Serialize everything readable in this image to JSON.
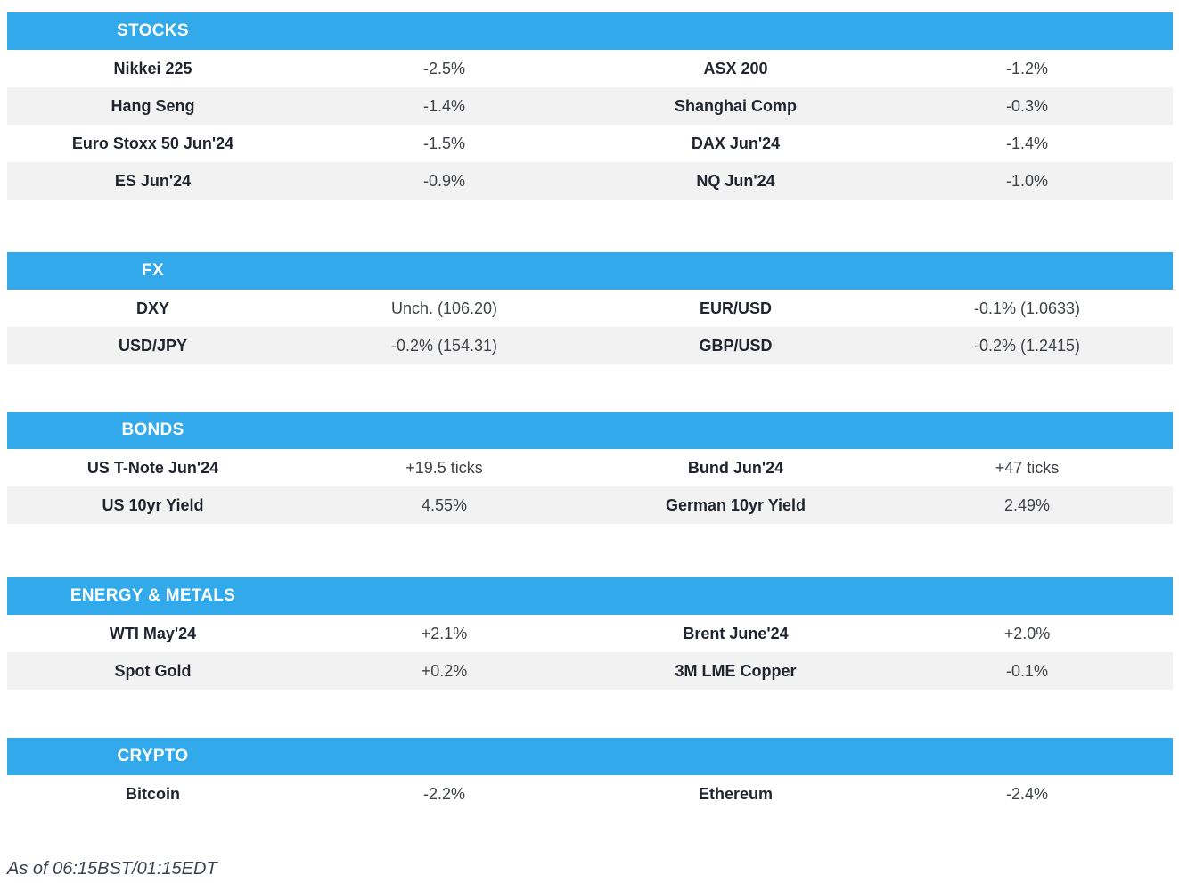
{
  "colors": {
    "header_bg": "#31A9EA",
    "row_alt_bg": "#F2F2F2",
    "header_text": "#FFFFFF",
    "label_text": "#1F242E",
    "value_text": "#3E4247"
  },
  "sections": [
    {
      "title": "STOCKS",
      "rows": [
        [
          "Nikkei 225",
          "-2.5%",
          "ASX 200",
          "-1.2%"
        ],
        [
          "Hang Seng",
          "-1.4%",
          "Shanghai Comp",
          "-0.3%"
        ],
        [
          "Euro Stoxx 50 Jun'24",
          "-1.5%",
          "DAX Jun'24",
          "-1.4%"
        ],
        [
          "ES Jun'24",
          "-0.9%",
          "NQ Jun'24",
          "-1.0%"
        ]
      ]
    },
    {
      "title": "FX",
      "rows": [
        [
          "DXY",
          "Unch. (106.20)",
          "EUR/USD",
          "-0.1% (1.0633)"
        ],
        [
          "USD/JPY",
          "-0.2% (154.31)",
          "GBP/USD",
          "-0.2% (1.2415)"
        ]
      ]
    },
    {
      "title": "BONDS",
      "rows": [
        [
          "US T-Note Jun'24",
          "+19.5 ticks",
          "Bund Jun'24",
          "+47 ticks"
        ],
        [
          "US 10yr Yield",
          "4.55%",
          "German 10yr Yield",
          "2.49%"
        ]
      ]
    },
    {
      "title": "ENERGY & METALS",
      "rows": [
        [
          "WTI May'24",
          "+2.1%",
          "Brent June'24",
          "+2.0%"
        ],
        [
          "Spot Gold",
          "+0.2%",
          "3M LME Copper",
          "-0.1%"
        ]
      ]
    },
    {
      "title": "CRYPTO",
      "rows": [
        [
          "Bitcoin",
          "-2.2%",
          "Ethereum",
          "-2.4%"
        ]
      ]
    }
  ],
  "footer": {
    "as_of": "As of 06:15BST/01:15EDT"
  }
}
